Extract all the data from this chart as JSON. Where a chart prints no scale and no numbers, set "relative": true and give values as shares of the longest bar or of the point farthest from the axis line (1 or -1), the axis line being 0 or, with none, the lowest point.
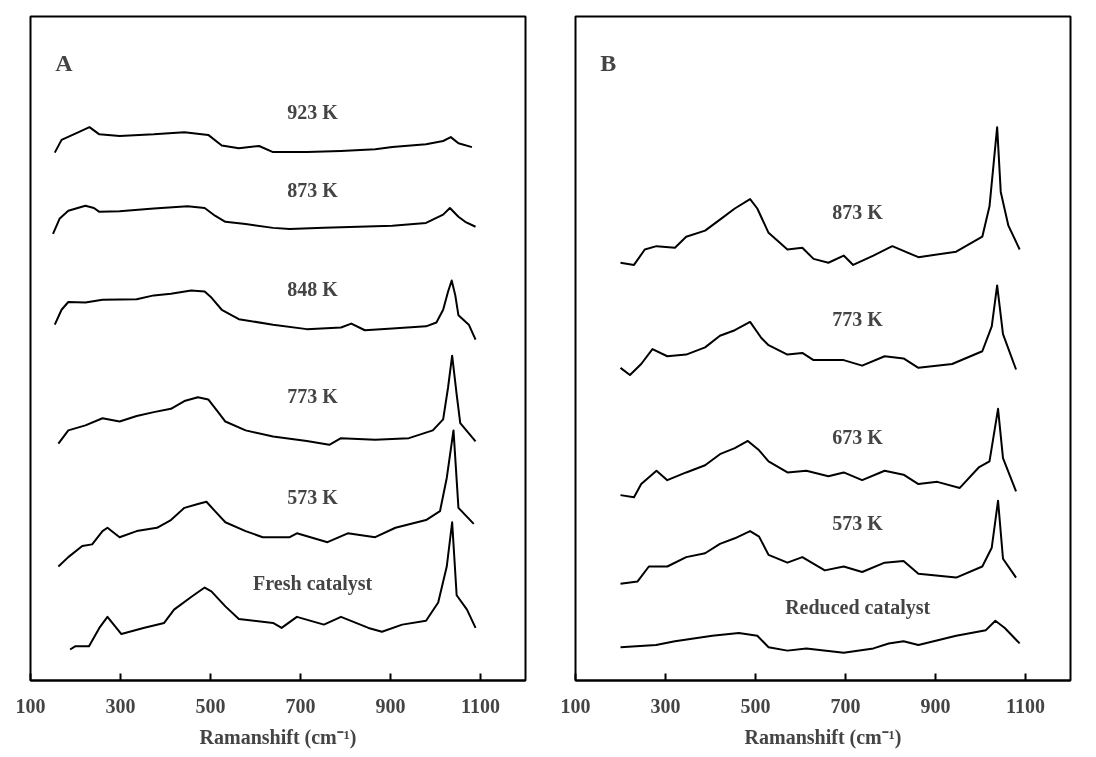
{
  "chart_data": [
    {
      "type": "line",
      "relative": true,
      "xlabel": "Ramanshift (cm⁻¹)",
      "annotations": [
        "A"
      ],
      "xlim": [
        100,
        1200
      ],
      "xticks": [
        100,
        300,
        500,
        700,
        900,
        1100
      ],
      "legend": false,
      "grid": false,
      "series": [
        {
          "name": "923 K",
          "color": "#000000",
          "x": [
            154,
            169,
            207,
            231,
            253,
            298,
            374,
            442,
            495,
            525,
            563,
            608,
            639,
            714,
            790,
            866,
            904,
            979,
            1017,
            1034,
            1051,
            1081
          ],
          "values": [
            0.954,
            0.977,
            0.991,
            1.0,
            0.987,
            0.984,
            0.987,
            0.991,
            0.986,
            0.967,
            0.962,
            0.966,
            0.955,
            0.955,
            0.957,
            0.96,
            0.964,
            0.969,
            0.975,
            0.982,
            0.971,
            0.964
          ]
        },
        {
          "name": "873 K",
          "color": "#000000",
          "x": [
            150,
            165,
            184,
            222,
            241,
            253,
            298,
            374,
            449,
            487,
            510,
            533,
            578,
            639,
            676,
            752,
            828,
            904,
            979,
            1017,
            1032,
            1051,
            1066,
            1089
          ],
          "values": [
            0.807,
            0.835,
            0.849,
            0.858,
            0.854,
            0.847,
            0.848,
            0.853,
            0.857,
            0.854,
            0.84,
            0.829,
            0.825,
            0.818,
            0.816,
            0.818,
            0.82,
            0.822,
            0.827,
            0.842,
            0.854,
            0.838,
            0.829,
            0.82
          ]
        },
        {
          "name": "848 K",
          "color": "#000000",
          "x": [
            154,
            169,
            184,
            222,
            260,
            336,
            374,
            412,
            457,
            487,
            502,
            525,
            563,
            639,
            714,
            790,
            813,
            843,
            904,
            979,
            1002,
            1017,
            1028,
            1036,
            1044,
            1051,
            1074,
            1089
          ],
          "values": [
            0.643,
            0.67,
            0.684,
            0.683,
            0.688,
            0.689,
            0.696,
            0.699,
            0.705,
            0.703,
            0.692,
            0.67,
            0.653,
            0.643,
            0.635,
            0.638,
            0.645,
            0.633,
            0.636,
            0.64,
            0.647,
            0.67,
            0.703,
            0.723,
            0.696,
            0.66,
            0.643,
            0.616
          ]
        },
        {
          "name": "773 K",
          "color": "#000000",
          "x": [
            162,
            184,
            222,
            260,
            298,
            336,
            374,
            412,
            442,
            472,
            495,
            517,
            533,
            578,
            639,
            714,
            764,
            790,
            866,
            941,
            994,
            1017,
            1028,
            1037,
            1047,
            1055,
            1089
          ],
          "values": [
            0.428,
            0.452,
            0.461,
            0.474,
            0.468,
            0.478,
            0.485,
            0.491,
            0.505,
            0.512,
            0.508,
            0.485,
            0.468,
            0.452,
            0.441,
            0.433,
            0.426,
            0.438,
            0.435,
            0.438,
            0.452,
            0.472,
            0.53,
            0.587,
            0.517,
            0.465,
            0.432
          ]
        },
        {
          "name": "573 K",
          "color": "#000000",
          "x": [
            162,
            184,
            215,
            237,
            260,
            271,
            298,
            336,
            381,
            412,
            442,
            472,
            491,
            510,
            533,
            578,
            616,
            676,
            692,
            760,
            805,
            866,
            911,
            979,
            1010,
            1025,
            1040,
            1051,
            1085
          ],
          "values": [
            0.206,
            0.223,
            0.243,
            0.246,
            0.27,
            0.276,
            0.259,
            0.27,
            0.276,
            0.29,
            0.312,
            0.319,
            0.323,
            0.306,
            0.286,
            0.27,
            0.259,
            0.259,
            0.266,
            0.25,
            0.266,
            0.259,
            0.276,
            0.29,
            0.306,
            0.366,
            0.452,
            0.312,
            0.283
          ]
        },
        {
          "name": "Fresh catalyst",
          "color": "#000000",
          "x": [
            188,
            200,
            230,
            253,
            271,
            302,
            351,
            397,
            419,
            457,
            487,
            502,
            533,
            563,
            639,
            658,
            692,
            752,
            790,
            851,
            881,
            926,
            979,
            1006,
            1025,
            1037,
            1047,
            1070,
            1089
          ],
          "values": [
            0.056,
            0.062,
            0.062,
            0.095,
            0.115,
            0.084,
            0.095,
            0.104,
            0.128,
            0.151,
            0.168,
            0.161,
            0.134,
            0.111,
            0.104,
            0.095,
            0.115,
            0.101,
            0.115,
            0.095,
            0.088,
            0.101,
            0.108,
            0.141,
            0.206,
            0.286,
            0.154,
            0.128,
            0.095
          ]
        }
      ]
    },
    {
      "type": "line",
      "relative": true,
      "xlabel": "Ramanshift (cm⁻¹)",
      "annotations": [
        "B"
      ],
      "xlim": [
        100,
        1200
      ],
      "xticks": [
        100,
        300,
        500,
        700,
        900,
        1100
      ],
      "legend": false,
      "grid": false,
      "series": [
        {
          "name": "873 K",
          "color": "#000000",
          "x": [
            200,
            230,
            254,
            280,
            321,
            346,
            388,
            421,
            454,
            488,
            504,
            529,
            571,
            604,
            629,
            662,
            696,
            717,
            762,
            804,
            862,
            946,
            1004,
            1020,
            1037,
            1045,
            1062,
            1087
          ],
          "values": [
            0.755,
            0.751,
            0.779,
            0.785,
            0.782,
            0.802,
            0.813,
            0.833,
            0.853,
            0.87,
            0.853,
            0.809,
            0.779,
            0.782,
            0.762,
            0.755,
            0.768,
            0.751,
            0.768,
            0.785,
            0.765,
            0.775,
            0.802,
            0.857,
            1.0,
            0.883,
            0.822,
            0.779
          ]
        },
        {
          "name": "773 K",
          "color": "#000000",
          "x": [
            200,
            221,
            246,
            271,
            304,
            346,
            388,
            421,
            454,
            488,
            513,
            529,
            571,
            604,
            629,
            696,
            737,
            787,
            829,
            862,
            937,
            1004,
            1025,
            1037,
            1050,
            1079
          ],
          "values": [
            0.565,
            0.552,
            0.572,
            0.599,
            0.586,
            0.589,
            0.602,
            0.623,
            0.633,
            0.648,
            0.619,
            0.606,
            0.589,
            0.592,
            0.579,
            0.579,
            0.569,
            0.586,
            0.582,
            0.565,
            0.572,
            0.595,
            0.64,
            0.714,
            0.626,
            0.562
          ]
        },
        {
          "name": "673 K",
          "color": "#000000",
          "x": [
            200,
            230,
            246,
            280,
            304,
            346,
            388,
            421,
            454,
            483,
            508,
            529,
            571,
            613,
            662,
            696,
            737,
            787,
            829,
            862,
            904,
            954,
            996,
            1020,
            1039,
            1050,
            1079
          ],
          "values": [
            0.335,
            0.331,
            0.355,
            0.379,
            0.362,
            0.376,
            0.389,
            0.409,
            0.42,
            0.433,
            0.416,
            0.396,
            0.376,
            0.379,
            0.369,
            0.376,
            0.362,
            0.379,
            0.372,
            0.355,
            0.359,
            0.348,
            0.385,
            0.396,
            0.491,
            0.402,
            0.342
          ]
        },
        {
          "name": "573 K",
          "color": "#000000",
          "x": [
            200,
            238,
            263,
            304,
            346,
            388,
            421,
            454,
            488,
            508,
            529,
            571,
            604,
            654,
            696,
            737,
            787,
            829,
            862,
            946,
            1004,
            1025,
            1039,
            1050,
            1079
          ],
          "values": [
            0.175,
            0.179,
            0.206,
            0.206,
            0.223,
            0.23,
            0.247,
            0.257,
            0.27,
            0.26,
            0.227,
            0.213,
            0.223,
            0.199,
            0.206,
            0.196,
            0.213,
            0.216,
            0.193,
            0.186,
            0.206,
            0.24,
            0.325,
            0.22,
            0.186
          ]
        },
        {
          "name": "Reduced catalyst",
          "color": "#000000",
          "x": [
            200,
            279,
            321,
            404,
            463,
            504,
            529,
            571,
            613,
            696,
            762,
            796,
            829,
            862,
            946,
            1012,
            1033,
            1054,
            1087
          ],
          "values": [
            0.06,
            0.064,
            0.071,
            0.081,
            0.086,
            0.081,
            0.06,
            0.054,
            0.058,
            0.05,
            0.058,
            0.067,
            0.071,
            0.064,
            0.081,
            0.091,
            0.108,
            0.095,
            0.067
          ]
        }
      ]
    }
  ]
}
